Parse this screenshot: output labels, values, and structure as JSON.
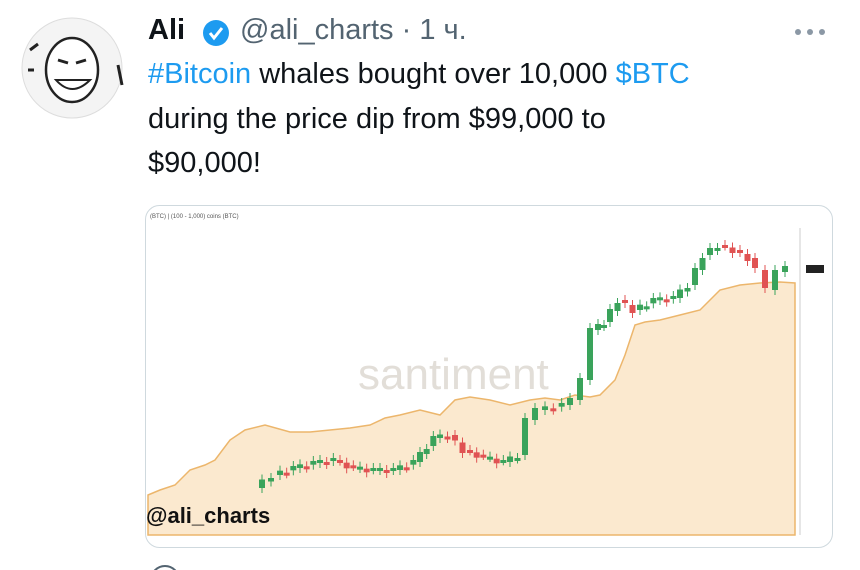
{
  "header": {
    "name": "Ali",
    "handle": "@ali_charts",
    "time": "· 1 ч."
  },
  "tweet": {
    "hashtag": "#Bitcoin",
    "text1": "whales bought over 10,000",
    "cashtag": "$BTC",
    "line2": "during the price dip from $99,000 to",
    "line3": "$90,000!"
  },
  "image": {
    "legend1": "(BTC)",
    "legend2": "(100 - 1,000) coins (BTC)",
    "watermark": "santiment",
    "credit": "@ali_charts"
  }
}
